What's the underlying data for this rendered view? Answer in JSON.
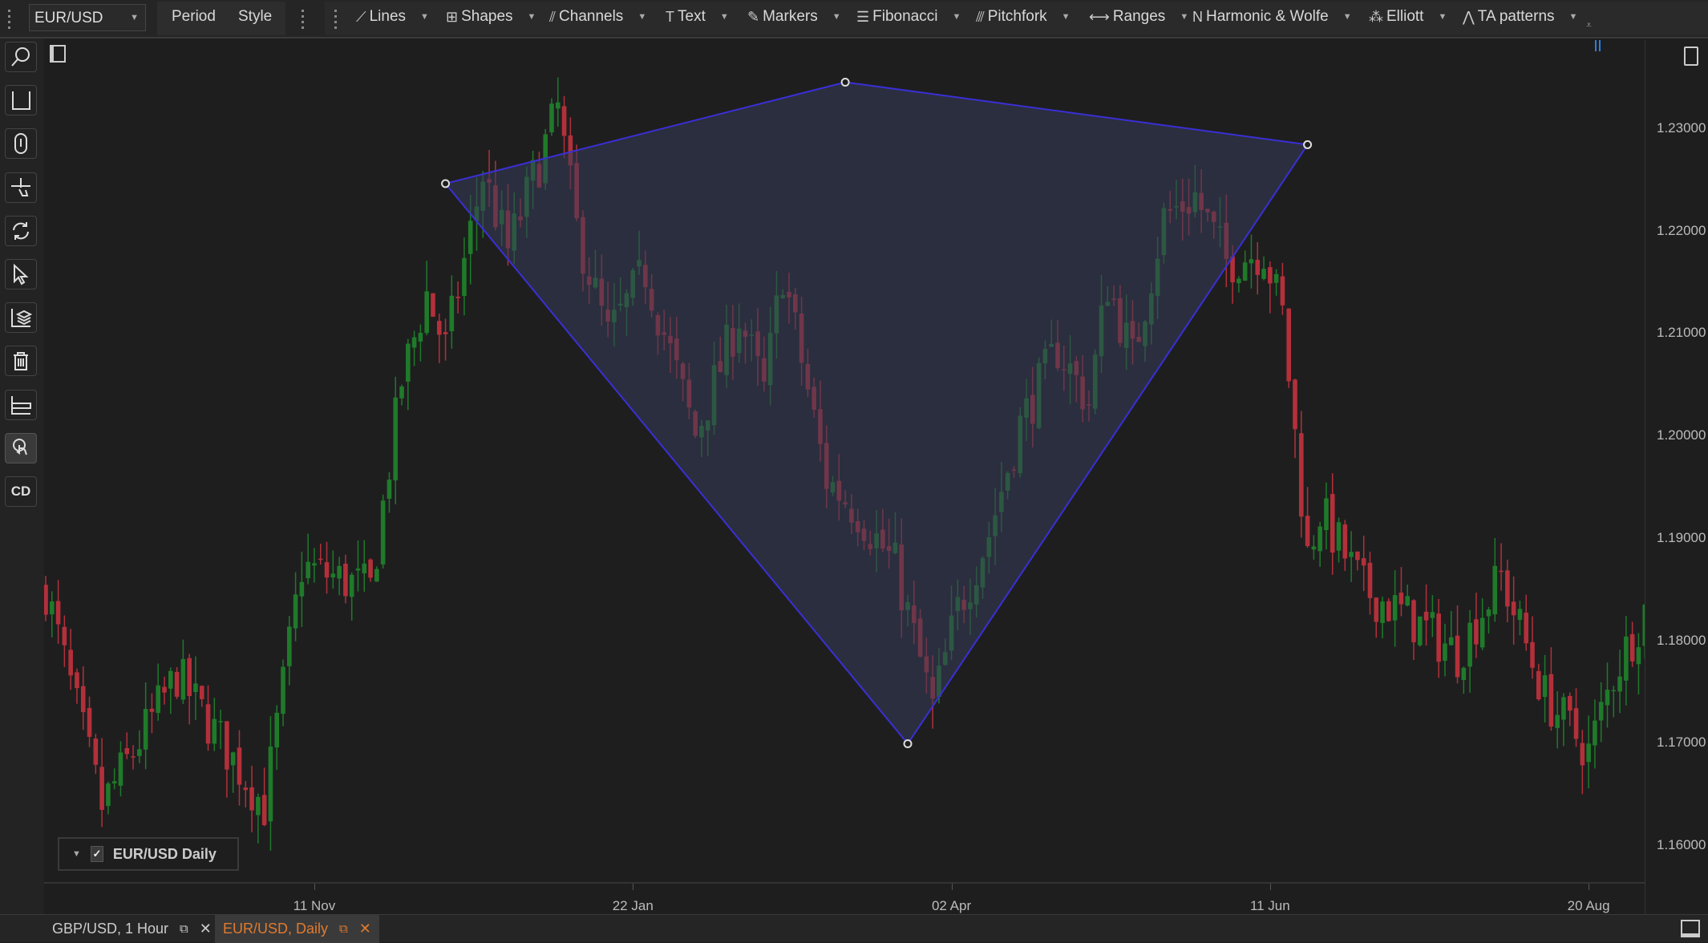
{
  "toolbar": {
    "symbol": "EUR/USD",
    "period_label": "Period",
    "style_label": "Style",
    "tools": [
      {
        "label": "Lines",
        "icon": "line-tool-icon"
      },
      {
        "label": "Shapes",
        "icon": "shapes-icon"
      },
      {
        "label": "Channels",
        "icon": "channels-icon"
      },
      {
        "label": "Text",
        "icon": "text-icon"
      },
      {
        "label": "Markers",
        "icon": "marker-icon"
      },
      {
        "label": "Fibonacci",
        "icon": "fibonacci-icon"
      },
      {
        "label": "Pitchfork",
        "icon": "pitchfork-icon"
      },
      {
        "label": "Ranges",
        "icon": "ranges-icon"
      },
      {
        "label": "Harmonic & Wolfe",
        "icon": "harmonic-icon"
      },
      {
        "label": "Elliott",
        "icon": "elliott-icon"
      },
      {
        "label": "TA patterns",
        "icon": "ta-patterns-icon"
      }
    ]
  },
  "left_toolbar": [
    "zoom-icon",
    "axis-scale-icon",
    "mouse-scroll-icon",
    "pan-icon",
    "refresh-icon",
    "cursor-icon",
    "layers-icon",
    "trash-icon",
    "axis-settings-icon",
    "touch-mode-icon",
    "crosshair-data-icon"
  ],
  "left_toolbar_cd": "CD",
  "legend": {
    "label": "EUR/USD Daily",
    "checked": true
  },
  "tabs": [
    {
      "label": "GBP/USD, 1 Hour",
      "active": false
    },
    {
      "label": "EUR/USD, Daily",
      "active": true
    }
  ],
  "colors": {
    "up": "#1f7a2a",
    "down": "#b3303a",
    "accent": "#e07a2e",
    "drawing_stroke": "#3a2fd6",
    "drawing_fill": "#363c58"
  },
  "chart_data": {
    "type": "candlestick",
    "x_tick_labels": [
      {
        "label": "11 Nov",
        "index": 43
      },
      {
        "label": "22 Jan",
        "index": 94
      },
      {
        "label": "02 Apr",
        "index": 145
      },
      {
        "label": "11 Jun",
        "index": 196
      },
      {
        "label": "20 Aug",
        "index": 247
      }
    ],
    "y_tick_labels": [
      "1.23000",
      "1.22000",
      "1.21000",
      "1.20000",
      "1.19000",
      "1.18000",
      "1.17000",
      "1.16000"
    ],
    "ylim": [
      1.1545,
      1.2375
    ],
    "close_path": [
      [
        0,
        1.185
      ],
      [
        9,
        1.1638
      ],
      [
        21,
        1.1766
      ],
      [
        35,
        1.1638
      ],
      [
        41,
        1.1872
      ],
      [
        52,
        1.185
      ],
      [
        57,
        1.2053
      ],
      [
        61,
        1.2138
      ],
      [
        64,
        1.2085
      ],
      [
        70,
        1.2255
      ],
      [
        74,
        1.2181
      ],
      [
        82,
        1.2319
      ],
      [
        85,
        1.2202
      ],
      [
        90,
        1.2096
      ],
      [
        96,
        1.216
      ],
      [
        104,
        1.2
      ],
      [
        111,
        1.2117
      ],
      [
        115,
        1.2043
      ],
      [
        118,
        1.216
      ],
      [
        125,
        1.1957
      ],
      [
        130,
        1.1926
      ],
      [
        136,
        1.1872
      ],
      [
        142,
        1.1734
      ],
      [
        146,
        1.183
      ],
      [
        151,
        1.1904
      ],
      [
        156,
        1.2011
      ],
      [
        162,
        1.2085
      ],
      [
        167,
        1.2032
      ],
      [
        170,
        1.2149
      ],
      [
        174,
        1.2075
      ],
      [
        179,
        1.2213
      ],
      [
        184,
        1.2234
      ],
      [
        189,
        1.217
      ],
      [
        195,
        1.2181
      ],
      [
        198,
        1.2117
      ],
      [
        202,
        1.1883
      ],
      [
        204,
        1.1926
      ],
      [
        211,
        1.185
      ],
      [
        219,
        1.1819
      ],
      [
        226,
        1.1787
      ],
      [
        233,
        1.1862
      ],
      [
        240,
        1.1745
      ],
      [
        247,
        1.1691
      ],
      [
        251,
        1.1766
      ],
      [
        256,
        1.183
      ]
    ],
    "drawing": {
      "type": "polygon",
      "points": [
        [
          64,
          1.2246
        ],
        [
          128,
          1.2345
        ],
        [
          202,
          1.2284
        ],
        [
          138,
          1.1699
        ]
      ]
    }
  }
}
